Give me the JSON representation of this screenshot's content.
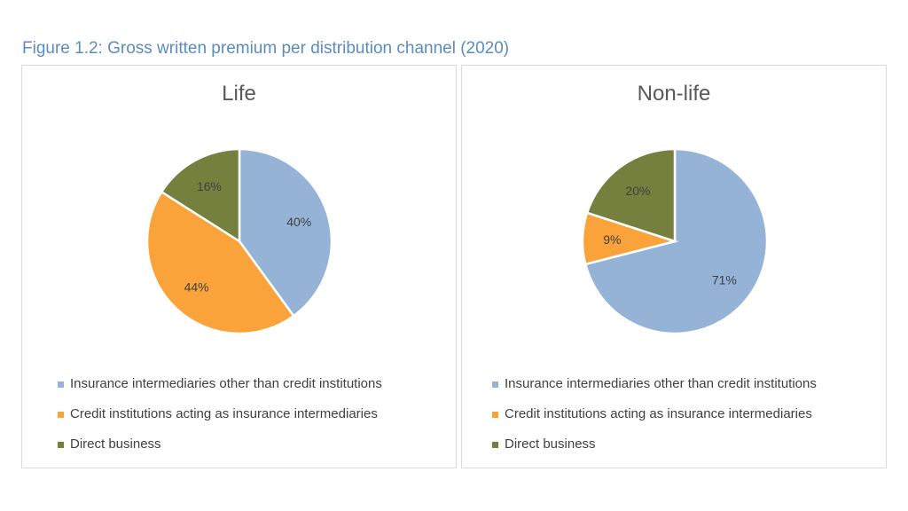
{
  "figure_title": "Figure 1.2: Gross written premium per distribution channel (2020)",
  "legend": [
    {
      "label": "Insurance intermediaries other than credit institutions",
      "color": "#95b3d7"
    },
    {
      "label": "Credit institutions acting as insurance intermediaries",
      "color": "#f9a33a"
    },
    {
      "label": "Direct business",
      "color": "#76803e"
    }
  ],
  "chart_data": [
    {
      "type": "pie",
      "title": "Life",
      "categories": [
        "Insurance intermediaries other than credit institutions",
        "Credit institutions acting as insurance intermediaries",
        "Direct business"
      ],
      "values": [
        40,
        44,
        16
      ],
      "labels": [
        "40%",
        "44%",
        "16%"
      ],
      "colors": [
        "#95b3d7",
        "#f9a33a",
        "#76803e"
      ],
      "legend_position": "bottom"
    },
    {
      "type": "pie",
      "title": "Non-life",
      "categories": [
        "Insurance intermediaries other than credit institutions",
        "Credit institutions acting as insurance intermediaries",
        "Direct business"
      ],
      "values": [
        71,
        9,
        20
      ],
      "labels": [
        "71%",
        "9%",
        "20%"
      ],
      "colors": [
        "#95b3d7",
        "#f9a33a",
        "#76803e"
      ],
      "legend_position": "bottom"
    }
  ]
}
